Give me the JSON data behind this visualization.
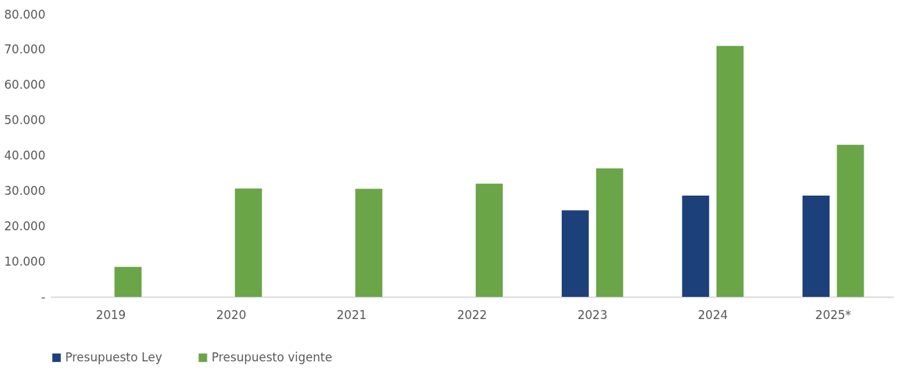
{
  "chart_data": {
    "type": "bar",
    "categories": [
      "2019",
      "2020",
      "2021",
      "2022",
      "2023",
      "2024",
      "2025*"
    ],
    "series": [
      {
        "name": "Presupuesto Ley",
        "color": "#1c407a",
        "values": [
          null,
          null,
          null,
          null,
          24500,
          28700,
          28700
        ]
      },
      {
        "name": "Presupuesto vigente",
        "color": "#6aa548",
        "values": [
          8500,
          30700,
          30600,
          32100,
          36400,
          71100,
          43100
        ]
      }
    ],
    "ylim": [
      0,
      80000
    ],
    "yticks": [
      {
        "value": 0,
        "label": "-"
      },
      {
        "value": 10000,
        "label": "10.000"
      },
      {
        "value": 20000,
        "label": "20.000"
      },
      {
        "value": 30000,
        "label": "30.000"
      },
      {
        "value": 40000,
        "label": "40.000"
      },
      {
        "value": 50000,
        "label": "50.000"
      },
      {
        "value": 60000,
        "label": "60.000"
      },
      {
        "value": 70000,
        "label": "70.000"
      },
      {
        "value": 80000,
        "label": "80.000"
      }
    ],
    "legend": "bottom",
    "grid": false
  }
}
